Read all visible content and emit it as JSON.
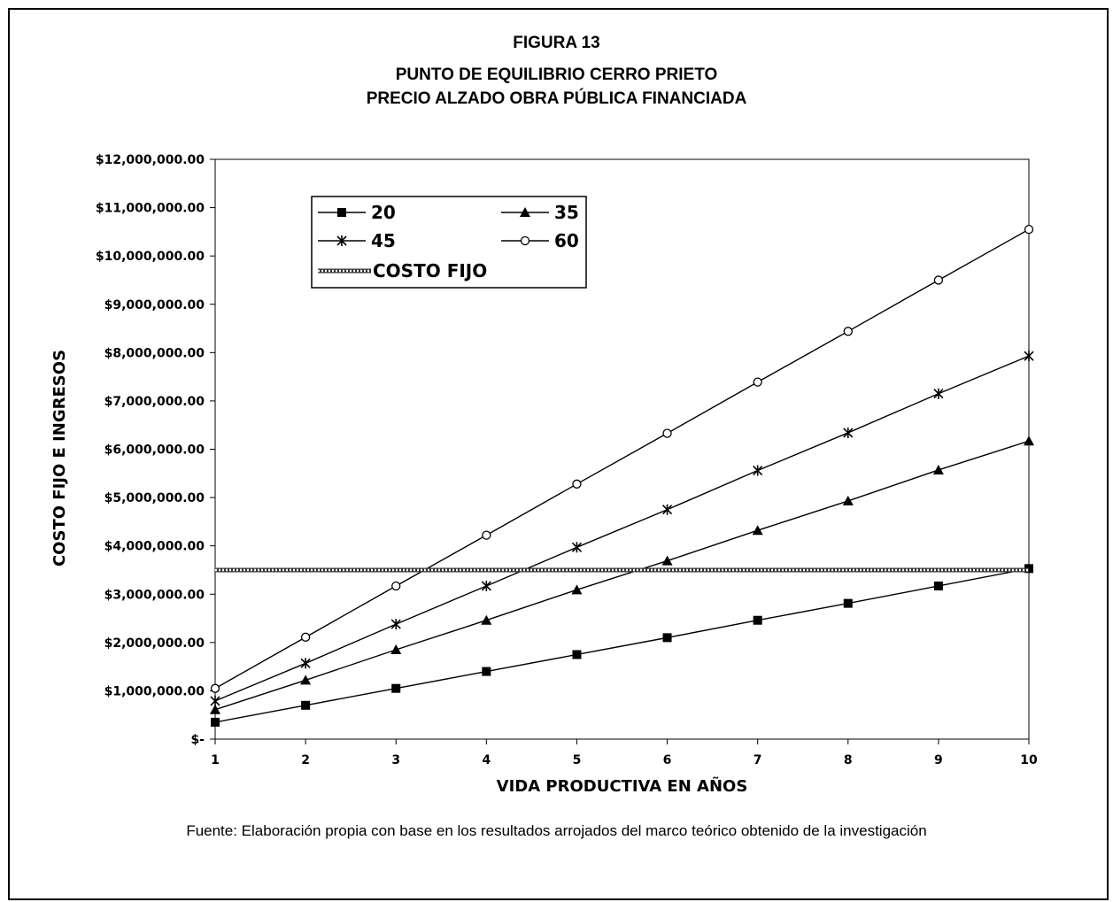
{
  "figure_label": "FIGURA 13",
  "title": "PUNTO DE EQUILIBRIO CERRO PRIETO",
  "subtitle": "PRECIO ALZADO OBRA PÚBLICA FINANCIADA",
  "source_note": "Fuente: Elaboración propia con base en los resultados arrojados del marco teórico obtenido de la investigación",
  "chart_data": {
    "type": "line",
    "title": "PUNTO DE EQUILIBRIO CERRO PRIETO",
    "subtitle": "PRECIO ALZADO OBRA PÚBLICA FINANCIADA",
    "xlabel": "VIDA PRODUCTIVA EN AÑOS",
    "ylabel": "COSTO FIJO E INGRESOS",
    "x": [
      1,
      2,
      3,
      4,
      5,
      6,
      7,
      8,
      9,
      10
    ],
    "x_tick_labels": [
      "1",
      "2",
      "3",
      "4",
      "5",
      "6",
      "7",
      "8",
      "9",
      "10"
    ],
    "ylim": [
      0,
      12000000
    ],
    "y_ticks": [
      0,
      1000000,
      2000000,
      3000000,
      4000000,
      5000000,
      6000000,
      7000000,
      8000000,
      9000000,
      10000000,
      11000000,
      12000000
    ],
    "y_tick_labels": [
      "$-",
      "$1,000,000.00",
      "$2,000,000.00",
      "$3,000,000.00",
      "$4,000,000.00",
      "$5,000,000.00",
      "$6,000,000.00",
      "$7,000,000.00",
      "$8,000,000.00",
      "$9,000,000.00",
      "$10,000,000.00",
      "$11,000,000.00",
      "$12,000,000.00"
    ],
    "grid": false,
    "legend_placement": "top-left inside plot",
    "series": [
      {
        "name": "20",
        "marker": "square",
        "color": "#000000",
        "values": [
          350000,
          700000,
          1050000,
          1400000,
          1750000,
          2100000,
          2460000,
          2810000,
          3170000,
          3530000
        ]
      },
      {
        "name": "35",
        "marker": "triangle",
        "color": "#000000",
        "values": [
          610000,
          1220000,
          1850000,
          2460000,
          3090000,
          3690000,
          4320000,
          4930000,
          5570000,
          6170000
        ]
      },
      {
        "name": "45",
        "marker": "star",
        "color": "#000000",
        "values": [
          790000,
          1570000,
          2380000,
          3170000,
          3970000,
          4750000,
          5560000,
          6340000,
          7150000,
          7930000
        ]
      },
      {
        "name": "60",
        "marker": "circle",
        "color": "#000000",
        "values": [
          1050000,
          2110000,
          3170000,
          4220000,
          5280000,
          6330000,
          7390000,
          8440000,
          9500000,
          10550000
        ]
      },
      {
        "name": "COSTO FIJO",
        "marker": "none",
        "style": "hatched",
        "color": "#555555",
        "values": [
          3500000,
          3500000,
          3500000,
          3500000,
          3500000,
          3500000,
          3500000,
          3500000,
          3500000,
          3500000
        ]
      }
    ]
  }
}
